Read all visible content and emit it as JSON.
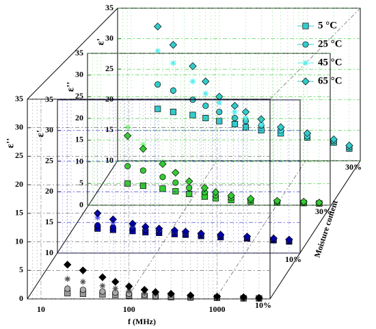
{
  "chart_data": [
    {
      "type": "scatter",
      "ylabel": "ε'",
      "moisture": "30%",
      "xlim": [
        7,
        4000
      ],
      "log_x": true,
      "ylim": [
        10,
        35
      ],
      "yticks": [
        10,
        15,
        20,
        25,
        30,
        35
      ],
      "grid": true,
      "legend": "upper right",
      "x": [
        20,
        30,
        50,
        70,
        100,
        150,
        200,
        300,
        500,
        1000,
        2000,
        3000
      ],
      "series": [
        {
          "name": "5  °C",
          "marker": "square",
          "color": "#33cccc",
          "values": [
            18.5,
            18,
            17.5,
            17,
            16.5,
            16,
            15.5,
            15,
            14.5,
            13.8,
            13,
            12
          ]
        },
        {
          "name": "25  °C",
          "marker": "circle",
          "color": "#33cccc",
          "values": [
            22.5,
            21.5,
            20,
            19,
            18,
            17,
            16.5,
            15.8,
            15,
            14,
            13.2,
            12.2
          ]
        },
        {
          "name": "45  °C",
          "marker": "asterisk",
          "color": "#55eeee",
          "values": [
            28,
            26,
            23,
            21,
            19.5,
            18,
            17,
            16,
            15,
            14.2,
            13.3,
            12.3
          ]
        },
        {
          "name": "65  °C",
          "marker": "diamond",
          "color": "#33cccc",
          "values": [
            32,
            29,
            25.5,
            23,
            20.5,
            19,
            18,
            16.8,
            15.5,
            14.5,
            13.5,
            12.5
          ]
        }
      ]
    },
    {
      "type": "scatter",
      "ylabel": "ε''",
      "moisture": "30%",
      "xlim": [
        7,
        4000
      ],
      "log_x": true,
      "ylim": [
        0,
        35
      ],
      "yticks": [
        0,
        5,
        10,
        15,
        20,
        25,
        30,
        35
      ],
      "grid": true,
      "x": [
        20,
        30,
        50,
        70,
        100,
        150,
        200,
        300,
        500,
        1000,
        2000,
        3000
      ],
      "series": [
        {
          "marker": "square",
          "color": "#33cc33",
          "values": [
            5,
            4.5,
            3.8,
            3.2,
            2.6,
            2,
            1.6,
            1.2,
            0.9,
            0.6,
            0.5,
            0.4
          ]
        },
        {
          "marker": "circle",
          "color": "#33cc33",
          "values": [
            9,
            8,
            6.5,
            5.2,
            4,
            3,
            2.3,
            1.7,
            1.2,
            0.8,
            0.6,
            0.5
          ]
        },
        {
          "marker": "asterisk",
          "color": "#77ff77",
          "values": [
            18,
            14,
            10,
            7.5,
            5.5,
            4,
            3,
            2,
            1.3,
            0.9,
            0.7,
            0.5
          ]
        },
        {
          "marker": "diamond",
          "color": "#33cc33",
          "values": [
            16,
            13,
            9.5,
            7.5,
            5.5,
            4,
            3,
            2.2,
            1.5,
            1,
            0.8,
            0.6
          ]
        }
      ]
    },
    {
      "type": "scatter",
      "ylabel": "ε'",
      "moisture": "10%",
      "xlim": [
        7,
        4000
      ],
      "log_x": true,
      "ylim": [
        10,
        35
      ],
      "yticks": [
        10,
        15,
        20,
        25,
        30,
        35
      ],
      "grid": true,
      "x": [
        20,
        30,
        50,
        70,
        100,
        150,
        200,
        300,
        500,
        1000,
        2000,
        3000
      ],
      "series": [
        {
          "marker": "square",
          "color": "#0000aa",
          "values": [
            14,
            13.8,
            13.6,
            13.4,
            13.3,
            13.1,
            13,
            12.8,
            12.6,
            12.4,
            12.1,
            11.9
          ]
        },
        {
          "marker": "circle",
          "color": "#0000aa",
          "values": [
            14.5,
            14.2,
            14,
            13.8,
            13.6,
            13.4,
            13.2,
            13,
            12.8,
            12.5,
            12.2,
            12
          ]
        },
        {
          "marker": "asterisk",
          "color": "#5555ff",
          "values": [
            15.8,
            15,
            14.5,
            14.1,
            13.8,
            13.5,
            13.3,
            13.1,
            12.9,
            12.6,
            12.3,
            12.1
          ]
        },
        {
          "marker": "diamond",
          "color": "#0000aa",
          "values": [
            16.5,
            15.5,
            14.8,
            14.3,
            14,
            13.7,
            13.5,
            13.2,
            13,
            12.7,
            12.4,
            12.2
          ]
        }
      ]
    },
    {
      "type": "scatter",
      "ylabel": "ε''",
      "moisture": "10%",
      "xlabel": "f (MHz)",
      "xlim": [
        7,
        4000
      ],
      "log_x": true,
      "xticks": [
        10,
        100,
        1000
      ],
      "ylim": [
        0,
        35
      ],
      "yticks": [
        0,
        5,
        10,
        15,
        20,
        25,
        30,
        35
      ],
      "grid": true,
      "x": [
        20,
        30,
        50,
        70,
        100,
        150,
        200,
        300,
        500,
        1000,
        2000,
        3000
      ],
      "series": [
        {
          "marker": "square",
          "color": "#999999",
          "values": [
            1,
            0.9,
            0.8,
            0.7,
            0.6,
            0.5,
            0.4,
            0.3,
            0.25,
            0.2,
            0.1,
            0.1
          ]
        },
        {
          "marker": "circle",
          "color": "#aaaaaa",
          "values": [
            1.8,
            1.6,
            1.3,
            1.1,
            0.9,
            0.7,
            0.5,
            0.4,
            0.3,
            0.2,
            0.15,
            0.1
          ]
        },
        {
          "marker": "asterisk",
          "color": "#555555",
          "values": [
            3.5,
            3,
            2.3,
            1.8,
            1.4,
            1,
            0.8,
            0.6,
            0.4,
            0.3,
            0.2,
            0.15
          ]
        },
        {
          "marker": "diamond",
          "color": "#000000",
          "values": [
            6,
            5,
            3.8,
            3,
            2.2,
            1.6,
            1.2,
            0.9,
            0.6,
            0.4,
            0.3,
            0.2
          ]
        }
      ]
    }
  ],
  "depth_axis": {
    "label": "Moisture content"
  }
}
